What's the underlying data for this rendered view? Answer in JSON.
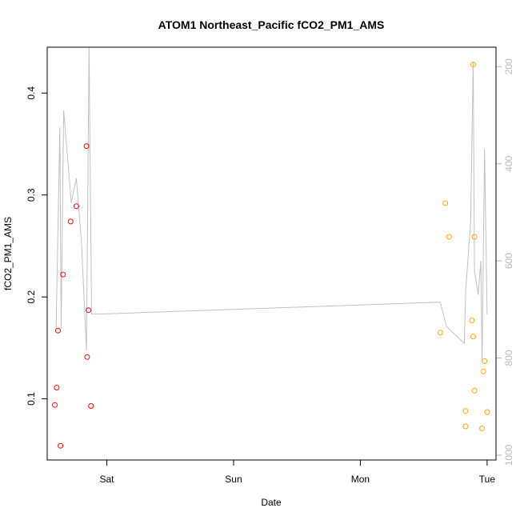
{
  "chart_data": {
    "type": "scatter",
    "title": "ATOM1 Northeast_Pacific fCO2_PM1_AMS",
    "xlabel": "Date",
    "ylabel": "fCO2_PM1_AMS",
    "x_ticks": [
      "Sat",
      "Sun",
      "Mon",
      "Tue"
    ],
    "x_tick_values": [
      0.0,
      1.0,
      2.0,
      3.0
    ],
    "xlim": [
      -0.47,
      3.07
    ],
    "ylim": [
      0.04,
      0.445
    ],
    "y_ticks": [
      0.1,
      0.2,
      0.3,
      0.4
    ],
    "y_tick_labels": [
      "0.1",
      "0.2",
      "0.3",
      "0.4"
    ],
    "y2_ticks": [
      200,
      400,
      600,
      800,
      1000
    ],
    "y2_tick_labels": [
      "200",
      "400",
      "600",
      "800",
      "1000"
    ],
    "y2lim": [
      1010,
      160
    ],
    "colors": {
      "series_1": "#ff0000",
      "series_2": "#ffa500",
      "line": "#c0c0c0",
      "frame": "#000000",
      "right_axis": "#b8b8b8"
    },
    "series": [
      {
        "color": "#ff0000",
        "marker": "open-circle",
        "points": [
          {
            "x": -0.41,
            "y": 0.094
          },
          {
            "x": -0.395,
            "y": 0.111
          },
          {
            "x": -0.385,
            "y": 0.167
          },
          {
            "x": -0.365,
            "y": 0.054
          },
          {
            "x": -0.345,
            "y": 0.222
          },
          {
            "x": -0.285,
            "y": 0.274
          },
          {
            "x": -0.24,
            "y": 0.289
          },
          {
            "x": -0.16,
            "y": 0.348
          },
          {
            "x": -0.155,
            "y": 0.141
          },
          {
            "x": -0.145,
            "y": 0.187
          },
          {
            "x": -0.125,
            "y": 0.093
          }
        ]
      },
      {
        "color": "#ffa500",
        "marker": "open-circle",
        "points": [
          {
            "x": 2.63,
            "y": 0.165
          },
          {
            "x": 2.67,
            "y": 0.292
          },
          {
            "x": 2.7,
            "y": 0.259
          },
          {
            "x": 2.83,
            "y": 0.088
          },
          {
            "x": 2.83,
            "y": 0.073
          },
          {
            "x": 2.88,
            "y": 0.177
          },
          {
            "x": 2.89,
            "y": 0.428
          },
          {
            "x": 2.89,
            "y": 0.161
          },
          {
            "x": 2.9,
            "y": 0.108
          },
          {
            "x": 2.9,
            "y": 0.259
          },
          {
            "x": 2.96,
            "y": 0.071
          },
          {
            "x": 2.97,
            "y": 0.127
          },
          {
            "x": 2.98,
            "y": 0.137
          },
          {
            "x": 3.0,
            "y": 0.087
          }
        ]
      }
    ],
    "line": {
      "color": "#c0c0c0",
      "axis": "right",
      "points": [
        {
          "x": -0.4,
          "y": 740
        },
        {
          "x": -0.37,
          "y": 325
        },
        {
          "x": -0.36,
          "y": 740
        },
        {
          "x": -0.34,
          "y": 290
        },
        {
          "x": -0.28,
          "y": 480
        },
        {
          "x": -0.24,
          "y": 430
        },
        {
          "x": -0.2,
          "y": 560
        },
        {
          "x": -0.16,
          "y": 785
        },
        {
          "x": -0.14,
          "y": 160
        },
        {
          "x": -0.12,
          "y": 710
        },
        {
          "x": 2.63,
          "y": 685
        },
        {
          "x": 2.68,
          "y": 735
        },
        {
          "x": 2.82,
          "y": 770
        },
        {
          "x": 2.83,
          "y": 665
        },
        {
          "x": 2.87,
          "y": 520
        },
        {
          "x": 2.89,
          "y": 190
        },
        {
          "x": 2.9,
          "y": 620
        },
        {
          "x": 2.93,
          "y": 670
        },
        {
          "x": 2.95,
          "y": 600
        },
        {
          "x": 2.96,
          "y": 805
        },
        {
          "x": 2.98,
          "y": 370
        },
        {
          "x": 3.0,
          "y": 710
        }
      ]
    }
  }
}
